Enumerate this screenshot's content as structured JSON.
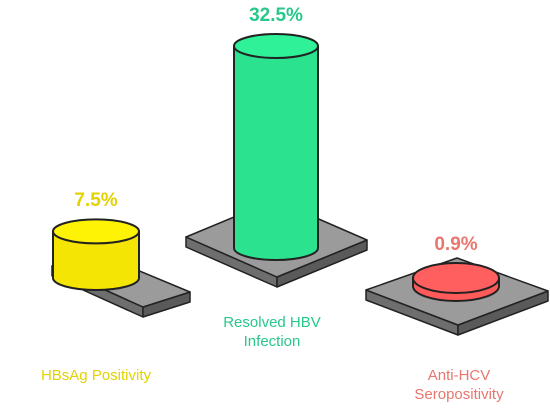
{
  "chart_data": {
    "type": "bar",
    "categories": [
      "HBsAg Positivity",
      "Resolved HBV\nInfection",
      "Anti-HCV\nSeropositivity"
    ],
    "series": [
      {
        "values": [
          7.5,
          32.5,
          0.9
        ]
      }
    ],
    "value_labels": [
      "7.5%",
      "32.5%",
      "0.9%"
    ],
    "colors": [
      "#f5e505",
      "#2be38f",
      "#ff5a5a"
    ],
    "label_colors": [
      "#e3d200",
      "#27c88a",
      "#e8766e"
    ],
    "title": "",
    "xlabel": "",
    "ylabel": "",
    "ylim": [
      0,
      35
    ],
    "grid": false,
    "style": "3d-cylinder"
  }
}
